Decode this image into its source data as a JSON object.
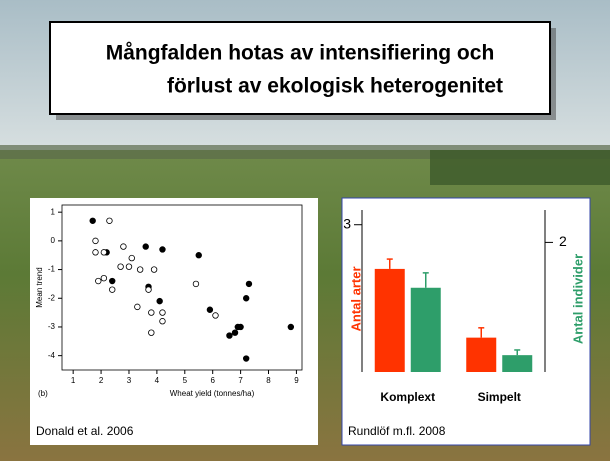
{
  "title_lines": [
    "Mångfalden hotas av intensifiering och",
    "förlust av ekologisk heterogenitet"
  ],
  "chart_data": [
    {
      "type": "scatter",
      "panel_label": "(b)",
      "xlabel": "Wheat yield (tonnes/ha)",
      "ylabel": "Mean trend",
      "caption": "Donald et al. 2006",
      "xlim": [
        0.6,
        9.2
      ],
      "xticks": [
        1,
        2,
        3,
        4,
        5,
        6,
        7,
        8,
        9
      ],
      "ylim": [
        -4.5,
        1.25
      ],
      "yticks": [
        1,
        0,
        -1,
        -2,
        -3,
        -4
      ],
      "series": [
        {
          "marker": "filled",
          "color": "#000000",
          "x": [
            1.7,
            2.2,
            2.4,
            3.6,
            4.2,
            3.7,
            4.1,
            5.5,
            5.9,
            6.9,
            6.6,
            6.8,
            7.0,
            7.2,
            7.3,
            7.2,
            8.8
          ],
          "y": [
            0.7,
            -0.4,
            -1.4,
            -0.2,
            -0.3,
            -1.6,
            -2.1,
            -0.5,
            -2.4,
            -3.0,
            -3.3,
            -3.2,
            -3.0,
            -2.0,
            -1.5,
            -4.1,
            -3.0
          ]
        },
        {
          "marker": "open",
          "color": "#000000",
          "x": [
            1.8,
            2.3,
            1.8,
            2.1,
            1.9,
            2.1,
            2.4,
            2.7,
            2.8,
            3.0,
            3.1,
            3.4,
            3.9,
            3.3,
            3.7,
            3.8,
            4.2,
            4.2,
            3.8,
            5.4,
            6.1
          ],
          "y": [
            0.0,
            0.7,
            -0.4,
            -0.4,
            -1.4,
            -1.3,
            -1.7,
            -0.9,
            -0.2,
            -0.9,
            -0.6,
            -1.0,
            -1.0,
            -2.3,
            -1.7,
            -2.5,
            -2.5,
            -2.8,
            -3.2,
            -1.5,
            -2.6
          ]
        }
      ]
    },
    {
      "type": "bar",
      "caption": "Rundlöf m.fl. 2008",
      "categories": [
        "Komplext",
        "Simpelt"
      ],
      "ylim": [
        0,
        3.3
      ],
      "yticks": [
        3
      ],
      "y2lim": [
        0,
        2.5
      ],
      "y2ticks": [
        2
      ],
      "series": [
        {
          "name": "Antal arter",
          "color": "#ff3300",
          "values": [
            2.1,
            0.7
          ],
          "errors": [
            0.2,
            0.2
          ]
        },
        {
          "name": "Antal individer",
          "color": "#2e9e6a",
          "axis": "y2",
          "values": [
            1.3,
            0.26
          ],
          "errors": [
            0.23,
            0.08
          ]
        }
      ]
    }
  ]
}
